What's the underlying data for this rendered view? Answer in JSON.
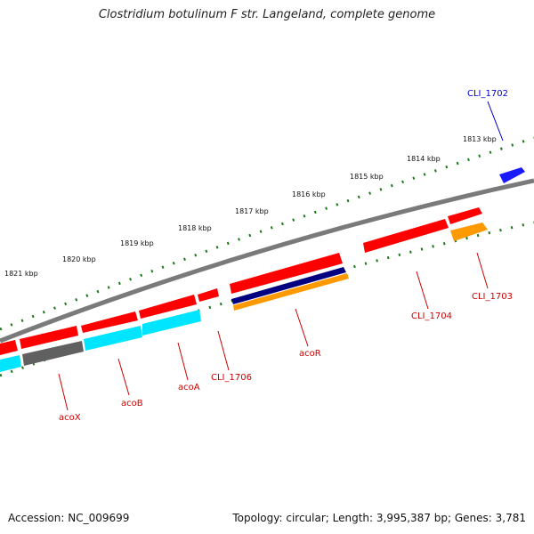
{
  "title": "Clostridium botulinum F str. Langeland, complete genome",
  "accession": "Accession: NC_009699",
  "summary": "Topology: circular; Length: 3,995,387 bp; Genes: 3,781",
  "colors": {
    "backbone": "#808080",
    "ticks": "#1a7a1a",
    "gene_red": "#ff0000",
    "gene_cyan": "#00e5ff",
    "gene_gray": "#606060",
    "gene_navy": "#000080",
    "gene_orange": "#ff9900",
    "gene_blue": "#1a1aff",
    "label_red": "#cc0000",
    "label_blue": "#0000cc"
  },
  "kbp_labels": [
    "1813 kbp",
    "1814 kbp",
    "1815 kbp",
    "1816 kbp",
    "1817 kbp",
    "1818 kbp",
    "1819 kbp",
    "1820 kbp",
    "1821 kbp"
  ],
  "gene_labels": [
    {
      "text": "CLI_1702",
      "color": "blue"
    },
    {
      "text": "CLI_1703",
      "color": "red"
    },
    {
      "text": "CLI_1704",
      "color": "red"
    },
    {
      "text": "acoR",
      "color": "red"
    },
    {
      "text": "CLI_1706",
      "color": "red"
    },
    {
      "text": "acoA",
      "color": "red"
    },
    {
      "text": "acoB",
      "color": "red"
    },
    {
      "text": "acoX",
      "color": "red"
    }
  ]
}
